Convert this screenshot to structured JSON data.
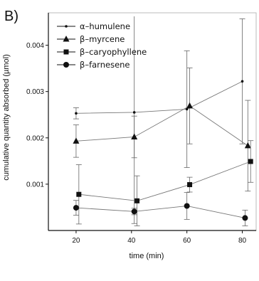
{
  "panel_label": "B)",
  "chart_data": {
    "type": "line",
    "title": "",
    "xlabel": "time (min)",
    "ylabel": "cumulative quantity absorbed (µmol)",
    "xlim": [
      10,
      85
    ],
    "ylim": [
      0,
      0.0047
    ],
    "x_ticks": [
      20,
      40,
      60,
      80
    ],
    "y_ticks": [
      0.001,
      0.002,
      0.003,
      0.004
    ],
    "y_tick_labels": [
      "0.001",
      "0.002",
      "0.003",
      "0.004"
    ],
    "legend_placement": "top-left",
    "grid": false,
    "series": [
      {
        "name": "α–humulene",
        "marker": "dot",
        "x": [
          20,
          41,
          60,
          80
        ],
        "y": [
          0.00253,
          0.00255,
          0.00262,
          0.00322
        ],
        "err": [
          0.00012,
          0.0024,
          0.00126,
          0.00135
        ]
      },
      {
        "name": "β–myrcene",
        "marker": "triangle",
        "x": [
          20,
          41,
          61,
          82
        ],
        "y": [
          0.00193,
          0.00202,
          0.00269,
          0.00183
        ],
        "err": [
          0.00035,
          0.00045,
          0.00082,
          0.00098
        ]
      },
      {
        "name": "β–caryophyllene",
        "marker": "square",
        "x": [
          21,
          42,
          61,
          83
        ],
        "y": [
          0.00078,
          0.00064,
          0.00099,
          0.00149
        ],
        "err": [
          0.00064,
          0.00054,
          0.00016,
          0.00045
        ]
      },
      {
        "name": "β–farnesene",
        "marker": "circle",
        "x": [
          20,
          41,
          60,
          81
        ],
        "y": [
          0.00049,
          0.00041,
          0.00053,
          0.00027
        ],
        "err": [
          0.00016,
          7e-05,
          0.00029,
          0.00017
        ]
      }
    ]
  }
}
